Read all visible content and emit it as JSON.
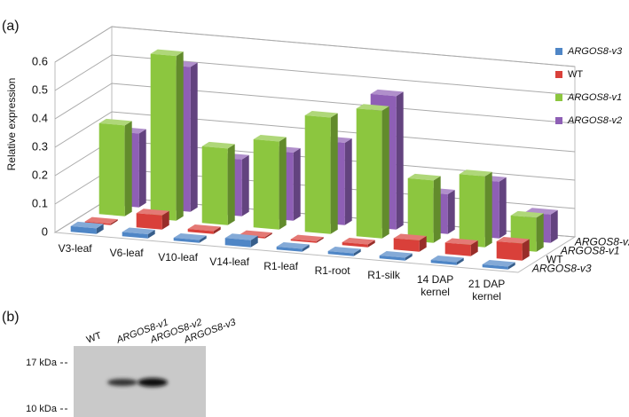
{
  "panel_labels": [
    "(a)",
    "(b)"
  ],
  "chart_data": {
    "type": "bar3d",
    "ylabel": "Relative expression",
    "categories": [
      "V3-leaf",
      "V6-leaf",
      "V10-leaf",
      "V14-leaf",
      "R1-leaf",
      "R1-root",
      "R1-silk",
      "14 DAP kernel",
      "21 DAP kernel"
    ],
    "series": [
      {
        "name": "ARGOS8-v3",
        "color": "#4f86c6",
        "values": [
          0.02,
          0.015,
          0.01,
          0.025,
          0.01,
          0.01,
          0.01,
          0.01,
          0.01
        ]
      },
      {
        "name": "WT",
        "color": "#d9403a",
        "values": [
          0.005,
          0.05,
          0.01,
          0.005,
          0.005,
          0.01,
          0.04,
          0.04,
          0.06
        ]
      },
      {
        "name": "ARGOS8-v1",
        "color": "#8cc63f",
        "values": [
          0.32,
          0.58,
          0.27,
          0.31,
          0.41,
          0.45,
          0.22,
          0.25,
          0.12
        ]
      },
      {
        "name": "ARGOS8-v2",
        "color": "#8e5fb5",
        "values": [
          0.26,
          0.51,
          0.2,
          0.24,
          0.29,
          0.47,
          0.14,
          0.2,
          0.1
        ]
      }
    ],
    "ylim": [
      0,
      0.6
    ],
    "yticks": [
      0,
      0.1,
      0.2,
      0.3,
      0.4,
      0.5,
      0.6
    ],
    "grid": true
  },
  "blot": {
    "lanes": [
      "WT",
      "ARGOS8-v1",
      "ARGOS8-v2",
      "ARGOS8-v3"
    ],
    "markers": [
      "17 kDa",
      "10 kDa"
    ]
  }
}
